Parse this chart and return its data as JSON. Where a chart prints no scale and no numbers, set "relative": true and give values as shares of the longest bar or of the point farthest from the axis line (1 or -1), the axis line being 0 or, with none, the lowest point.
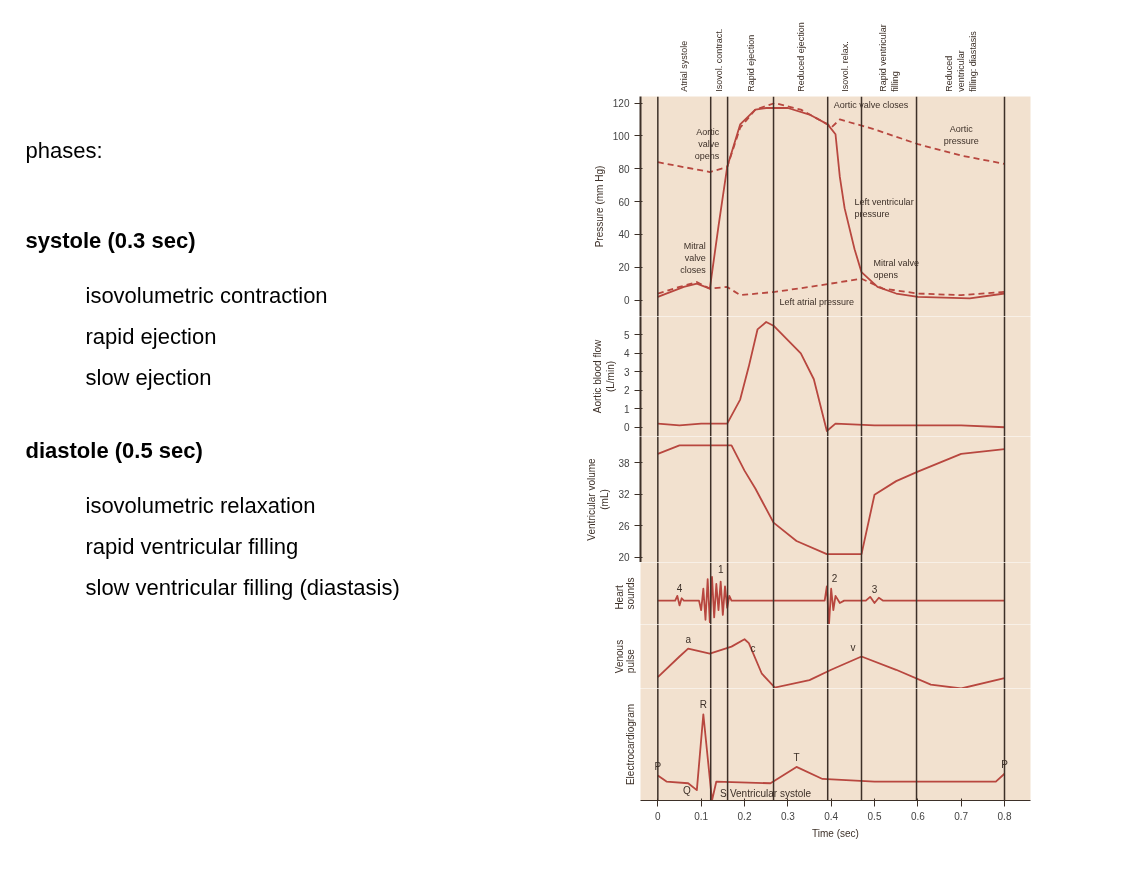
{
  "chart_data": [
    {
      "type": "other",
      "subtitle": "phases:"
    },
    {
      "type": "other",
      "title": "systole (0.3 sec)",
      "annotations": [
        "isovolumetric contraction",
        "rapid ejection",
        "slow ejection"
      ]
    },
    {
      "type": "other",
      "title": "diastole (0.5 sec)",
      "annotations": [
        "isovolumetric relaxation",
        "rapid ventricular filling",
        "slow ventricular filling (diastasis)"
      ]
    },
    {
      "type": "line",
      "ylabel": "Pressure (mm Hg)",
      "xlim": [
        -0.04,
        0.86
      ],
      "ylim": [
        -10,
        124
      ],
      "yticks": [
        0,
        20,
        40,
        60,
        80,
        100,
        120
      ],
      "tick_labels": "y",
      "grid": false,
      "series": [
        {
          "color": "#b8473f",
          "line_style": "solid",
          "x": [
            0,
            0.03,
            0.06,
            0.09,
            0.12,
            0.14,
            0.16,
            0.19,
            0.225,
            0.25,
            0.3,
            0.35,
            0.392,
            0.41,
            0.42,
            0.431,
            0.454,
            0.47,
            0.507,
            0.55,
            0.6,
            0.72,
            0.8
          ],
          "values": [
            2,
            5,
            8,
            10,
            7,
            45,
            81,
            107,
            116,
            117,
            117,
            113,
            107,
            101,
            75,
            56,
            31,
            17,
            8,
            4,
            2,
            1,
            4
          ]
        },
        {
          "color": "#b8473f",
          "line_style": "dashed",
          "x": [
            0,
            0.06,
            0.12,
            0.16,
            0.19,
            0.225,
            0.27,
            0.33,
            0.392,
            0.4,
            0.42,
            0.5,
            0.6,
            0.7,
            0.8
          ],
          "values": [
            84,
            81,
            78,
            81,
            105,
            116,
            120,
            116,
            107,
            105,
            110,
            104,
            95,
            88,
            83
          ]
        },
        {
          "color": "#b8473f",
          "line_style": "dashed",
          "x": [
            0,
            0.05,
            0.09,
            0.12,
            0.16,
            0.19,
            0.27,
            0.35,
            0.47,
            0.52,
            0.6,
            0.7,
            0.8
          ],
          "values": [
            4,
            8,
            11,
            7,
            8,
            3,
            5,
            8,
            13,
            7,
            4,
            3,
            5
          ]
        }
      ],
      "annotations": [
        {
          "text": "Aortic valve closes",
          "x": 0.392,
          "y": 107
        },
        {
          "text": "Aortic valve opens",
          "x": 0.16,
          "y": 81
        },
        {
          "text": "Aortic pressure",
          "x": 0.7,
          "y": 88
        },
        {
          "text": "Left ventricular pressure",
          "x": 0.431,
          "y": 56
        },
        {
          "text": "Mitral valve closes",
          "x": 0.12,
          "y": 7
        },
        {
          "text": "Mitral valve opens",
          "x": 0.47,
          "y": 13
        },
        {
          "text": "Left atrial pressure",
          "x": 0.35,
          "y": 8
        },
        "Atrial systole",
        "Isovol. contract.",
        "Rapid ejection",
        "Reduced ejection",
        "Isovol. relax.",
        "Rapid ventricular filling",
        "Reduced ventricular filling: diastasis"
      ],
      "ref_lines": [
        {
          "axis": "x",
          "value": 0
        },
        {
          "axis": "x",
          "value": 0.122
        },
        {
          "axis": "x",
          "value": 0.161
        },
        {
          "axis": "x",
          "value": 0.267
        },
        {
          "axis": "x",
          "value": 0.392
        },
        {
          "axis": "x",
          "value": 0.47
        },
        {
          "axis": "x",
          "value": 0.597
        },
        {
          "axis": "x",
          "value": 0.8
        }
      ]
    },
    {
      "type": "line",
      "ylabel": "Aortic blood flow (L/min)",
      "xlim": [
        -0.04,
        0.86
      ],
      "ylim": [
        -0.5,
        6
      ],
      "yticks": [
        0,
        1,
        2,
        3,
        4,
        5
      ],
      "tick_labels": "y",
      "grid": false,
      "series": [
        {
          "color": "#b8473f",
          "x": [
            0,
            0.05,
            0.1,
            0.16,
            0.19,
            0.21,
            0.23,
            0.25,
            0.267,
            0.33,
            0.36,
            0.39,
            0.41,
            0.5,
            0.6,
            0.7,
            0.8
          ],
          "values": [
            0.2,
            0.1,
            0.2,
            0.2,
            1.5,
            3.3,
            5.3,
            5.7,
            5.5,
            4.0,
            2.6,
            -0.2,
            0.2,
            0.1,
            0.1,
            0.1,
            0.0
          ]
        }
      ],
      "ref_lines": [
        {
          "axis": "x",
          "value": 0
        },
        {
          "axis": "x",
          "value": 0.122
        },
        {
          "axis": "x",
          "value": 0.161
        },
        {
          "axis": "x",
          "value": 0.267
        },
        {
          "axis": "x",
          "value": 0.392
        },
        {
          "axis": "x",
          "value": 0.47
        },
        {
          "axis": "x",
          "value": 0.597
        },
        {
          "axis": "x",
          "value": 0.8
        }
      ]
    },
    {
      "type": "line",
      "ylabel": "Ventricular volume (mL)",
      "xlim": [
        -0.04,
        0.86
      ],
      "ylim": [
        19,
        43
      ],
      "yticks": [
        20,
        26,
        32,
        38
      ],
      "tick_labels": "y",
      "grid": false,
      "series": [
        {
          "color": "#b8473f",
          "x": [
            0,
            0.05,
            0.17,
            0.2,
            0.225,
            0.267,
            0.32,
            0.39,
            0.47,
            0.5,
            0.55,
            0.6,
            0.7,
            0.8
          ],
          "values": [
            39.7,
            41.3,
            41.3,
            36.5,
            33.1,
            26.6,
            23.1,
            20.6,
            20.6,
            31.9,
            34.5,
            36.3,
            39.7,
            40.6
          ]
        }
      ],
      "ref_lines": [
        {
          "axis": "x",
          "value": 0
        },
        {
          "axis": "x",
          "value": 0.122
        },
        {
          "axis": "x",
          "value": 0.161
        },
        {
          "axis": "x",
          "value": 0.267
        },
        {
          "axis": "x",
          "value": 0.392
        },
        {
          "axis": "x",
          "value": 0.47
        },
        {
          "axis": "x",
          "value": 0.597
        },
        {
          "axis": "x",
          "value": 0.8
        }
      ]
    },
    {
      "type": "line",
      "ylabel": "Heart sounds",
      "relative": true,
      "xlim": [
        -0.04,
        0.86
      ],
      "tick_labels": false,
      "grid": false,
      "series": [
        {
          "color": "#b8473f",
          "x": [
            0,
            0.04,
            0.045,
            0.05,
            0.055,
            0.06,
            0.095,
            0.1,
            0.105,
            0.11,
            0.115,
            0.12,
            0.125,
            0.13,
            0.135,
            0.14,
            0.145,
            0.15,
            0.155,
            0.16,
            0.165,
            0.17,
            0.385,
            0.39,
            0.395,
            0.4,
            0.405,
            0.41,
            0.42,
            0.43,
            0.48,
            0.49,
            0.5,
            0.51,
            0.52,
            0.8
          ],
          "values": [
            0.5,
            0.5,
            0.6,
            0.4,
            0.55,
            0.5,
            0.5,
            0.3,
            0.75,
            0.1,
            0.95,
            0.05,
            1.0,
            0.15,
            0.85,
            0.3,
            0.9,
            0.2,
            0.8,
            0.35,
            0.6,
            0.5,
            0.5,
            0.8,
            0.0,
            0.75,
            0.3,
            0.6,
            0.45,
            0.5,
            0.5,
            0.58,
            0.45,
            0.56,
            0.5,
            0.5
          ]
        }
      ],
      "annotations": [
        {
          "text": "4",
          "x": 0.05,
          "y": 0.6
        },
        {
          "text": "1",
          "x": 0.125,
          "y": 1.0
        },
        {
          "text": "2",
          "x": 0.39,
          "y": 0.8
        },
        {
          "text": "3",
          "x": 0.5,
          "y": 0.58
        }
      ],
      "ref_lines": [
        {
          "axis": "x",
          "value": 0
        },
        {
          "axis": "x",
          "value": 0.122
        },
        {
          "axis": "x",
          "value": 0.161
        },
        {
          "axis": "x",
          "value": 0.267
        },
        {
          "axis": "x",
          "value": 0.392
        },
        {
          "axis": "x",
          "value": 0.47
        },
        {
          "axis": "x",
          "value": 0.597
        },
        {
          "axis": "x",
          "value": 0.8
        }
      ]
    },
    {
      "type": "line",
      "ylabel": "Venous pulse",
      "relative": true,
      "xlim": [
        -0.04,
        0.86
      ],
      "tick_labels": false,
      "grid": false,
      "series": [
        {
          "color": "#b8473f",
          "x": [
            0,
            0.05,
            0.07,
            0.12,
            0.17,
            0.2,
            0.21,
            0.24,
            0.27,
            0.35,
            0.4,
            0.47,
            0.55,
            0.63,
            0.7,
            0.8
          ],
          "values": [
            0.23,
            0.65,
            0.81,
            0.71,
            0.85,
            1.0,
            0.92,
            0.3,
            0.02,
            0.17,
            0.38,
            0.65,
            0.38,
            0.08,
            0.0,
            0.21
          ]
        }
      ],
      "annotations": [
        {
          "text": "a",
          "x": 0.07,
          "y": 0.81
        },
        {
          "text": "c",
          "x": 0.2,
          "y": 1.0
        },
        {
          "text": "v",
          "x": 0.47,
          "y": 0.65
        }
      ],
      "ref_lines": [
        {
          "axis": "x",
          "value": 0
        },
        {
          "axis": "x",
          "value": 0.122
        },
        {
          "axis": "x",
          "value": 0.161
        },
        {
          "axis": "x",
          "value": 0.267
        },
        {
          "axis": "x",
          "value": 0.392
        },
        {
          "axis": "x",
          "value": 0.47
        },
        {
          "axis": "x",
          "value": 0.597
        },
        {
          "axis": "x",
          "value": 0.8
        }
      ]
    },
    {
      "type": "line",
      "ylabel": "Electrocardiogram",
      "xlabel": "Time (sec)",
      "relative": true,
      "xlim": [
        -0.04,
        0.86
      ],
      "xticks": [
        0,
        0.1,
        0.2,
        0.3,
        0.4,
        0.5,
        0.6,
        0.7,
        0.8
      ],
      "tick_labels": "x",
      "grid": false,
      "series": [
        {
          "color": "#b8473f",
          "x": [
            0,
            0.02,
            0.07,
            0.09,
            0.105,
            0.125,
            0.135,
            0.26,
            0.32,
            0.38,
            0.5,
            0.78,
            0.8
          ],
          "values": [
            0.29,
            0.22,
            0.2,
            0.12,
            1.0,
            0.0,
            0.22,
            0.2,
            0.39,
            0.25,
            0.22,
            0.22,
            0.31
          ]
        }
      ],
      "annotations": [
        {
          "text": "P",
          "x": 0,
          "y": 0.29
        },
        {
          "text": "Q",
          "x": 0.09,
          "y": 0.12
        },
        {
          "text": "R",
          "x": 0.105,
          "y": 1.0
        },
        {
          "text": "S",
          "x": 0.125,
          "y": 0.0
        },
        {
          "text": "T",
          "x": 0.32,
          "y": 0.39
        },
        {
          "text": "P",
          "x": 0.8,
          "y": 0.31
        },
        {
          "text": "Ventricular systole",
          "x": 0.26
        }
      ],
      "ref_lines": [
        {
          "axis": "x",
          "value": 0
        },
        {
          "axis": "x",
          "value": 0.122
        },
        {
          "axis": "x",
          "value": 0.161
        },
        {
          "axis": "x",
          "value": 0.267
        },
        {
          "axis": "x",
          "value": 0.392
        },
        {
          "axis": "x",
          "value": 0.47
        },
        {
          "axis": "x",
          "value": 0.597
        },
        {
          "axis": "x",
          "value": 0.8
        }
      ]
    }
  ]
}
